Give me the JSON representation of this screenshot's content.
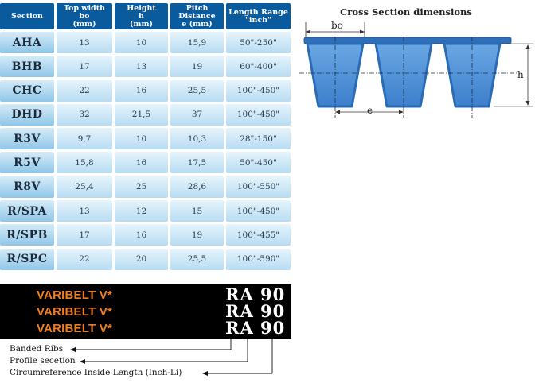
{
  "table": {
    "headers": [
      "Section",
      "Top width\nbo\n(mm)",
      "Height\nh\n(mm)",
      "Pitch\nDistance\ne (mm)",
      "Length Range\n\"inch\""
    ],
    "rows": [
      [
        "AHA",
        "13",
        "10",
        "15,9",
        "50\"-250\""
      ],
      [
        "BHB",
        "17",
        "13",
        "19",
        "60\"-400\""
      ],
      [
        "CHC",
        "22",
        "16",
        "25,5",
        "100\"-450\""
      ],
      [
        "DHD",
        "32",
        "21,5",
        "37",
        "100\"-450\""
      ],
      [
        "R3V",
        "9,7",
        "10",
        "10,3",
        "28\"-150\""
      ],
      [
        "R5V",
        "15,8",
        "16",
        "17,5",
        "50\"-450\""
      ],
      [
        "R8V",
        "25,4",
        "25",
        "28,6",
        "100\"-550\""
      ],
      [
        "R/SPA",
        "13",
        "12",
        "15",
        "100\"-450\""
      ],
      [
        "R/SPB",
        "17",
        "16",
        "19",
        "100\"-455\""
      ],
      [
        "R/SPC",
        "22",
        "20",
        "25,5",
        "100\"-590\""
      ]
    ]
  },
  "cross_section": {
    "title": "Cross Section dimensions",
    "label_bo": "bo",
    "label_h": "h",
    "label_e": "e",
    "belt_color": "#4a8ed6",
    "belt_dark": "#2b6bb5"
  },
  "code": {
    "lines": [
      {
        "name": "VARIBELT V*",
        "code": "RA 90"
      },
      {
        "name": "VARIBELT V*",
        "code": "RA 90"
      },
      {
        "name": "VARIBELT V*",
        "code": "RA 90"
      }
    ],
    "name_color": "#f07c1e"
  },
  "legend": {
    "banded_ribs": "Banded Ribs",
    "profile_section": "Profile secetion",
    "circumference": "Circumreference Inside Length (Inch-Li)"
  }
}
